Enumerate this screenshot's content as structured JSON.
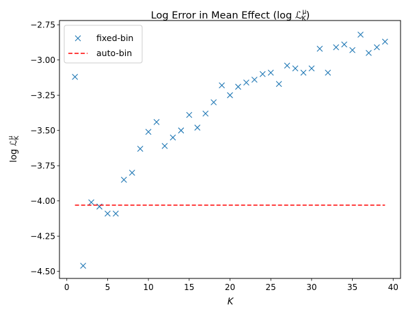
{
  "chart_data": {
    "type": "scatter",
    "title": "Log Error in Mean Effect (log ℒ",
    "title_sup": "μ",
    "title_sub": "K",
    "title_close": ")",
    "xlabel": "K",
    "ylabel": "log ℒ",
    "ylabel_sup": "μ",
    "ylabel_sub": "K",
    "xlim": [
      -0.9,
      40.9
    ],
    "ylim": [
      -4.55,
      -2.72
    ],
    "xticks": [
      0,
      5,
      10,
      15,
      20,
      25,
      30,
      35,
      40
    ],
    "xtick_labels": [
      "0",
      "5",
      "10",
      "15",
      "20",
      "25",
      "30",
      "35",
      "40"
    ],
    "yticks": [
      -4.5,
      -4.25,
      -4.0,
      -3.75,
      -3.5,
      -3.25,
      -3.0,
      -2.75
    ],
    "ytick_labels": [
      "−4.50",
      "−4.25",
      "−4.00",
      "−3.75",
      "−3.50",
      "−3.25",
      "−3.00",
      "−2.75"
    ],
    "grid": false,
    "legend_position": "top-left",
    "series": [
      {
        "name": "fixed-bin",
        "style": "x-markers",
        "color": "#1f77b4",
        "x": [
          1,
          2,
          3,
          4,
          5,
          6,
          7,
          8,
          9,
          10,
          11,
          12,
          13,
          14,
          15,
          16,
          17,
          18,
          19,
          20,
          21,
          22,
          23,
          24,
          25,
          26,
          27,
          28,
          29,
          30,
          31,
          32,
          33,
          34,
          35,
          36,
          37,
          38,
          39
        ],
        "y": [
          -3.12,
          -4.46,
          -4.01,
          -4.04,
          -4.09,
          -4.09,
          -3.85,
          -3.8,
          -3.63,
          -3.51,
          -3.44,
          -3.61,
          -3.55,
          -3.5,
          -3.39,
          -3.48,
          -3.38,
          -3.3,
          -3.18,
          -3.25,
          -3.19,
          -3.16,
          -3.14,
          -3.1,
          -3.09,
          -3.17,
          -3.04,
          -3.06,
          -3.09,
          -3.06,
          -2.92,
          -3.09,
          -2.91,
          -2.89,
          -2.93,
          -2.82,
          -2.95,
          -2.91,
          -2.87
        ]
      },
      {
        "name": "auto-bin",
        "style": "dashed-line",
        "color": "#ff0000",
        "x": [
          1,
          39
        ],
        "y": [
          -4.03,
          -4.03
        ]
      }
    ]
  }
}
